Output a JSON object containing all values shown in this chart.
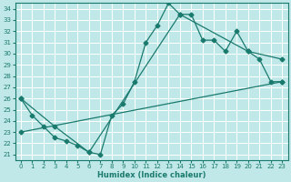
{
  "xlabel": "Humidex (Indice chaleur)",
  "bg_color": "#c0e8e8",
  "grid_color": "#ffffff",
  "line_color": "#1a7a6e",
  "xlim": [
    -0.5,
    23.5
  ],
  "ylim": [
    20.5,
    34.5
  ],
  "xticks": [
    0,
    1,
    2,
    3,
    4,
    5,
    6,
    7,
    8,
    9,
    10,
    11,
    12,
    13,
    14,
    15,
    16,
    17,
    18,
    19,
    20,
    21,
    22,
    23
  ],
  "yticks": [
    21,
    22,
    23,
    24,
    25,
    26,
    27,
    28,
    29,
    30,
    31,
    32,
    33,
    34
  ],
  "line1_x": [
    0,
    1,
    2,
    3,
    4,
    5,
    6,
    7,
    8,
    9,
    10,
    11,
    12,
    13,
    14,
    15,
    16,
    17,
    18,
    19,
    20,
    21,
    22,
    23
  ],
  "line1_y": [
    26.0,
    24.5,
    23.5,
    22.5,
    22.2,
    21.8,
    21.2,
    21.0,
    24.5,
    25.5,
    27.5,
    31.0,
    32.5,
    34.5,
    33.5,
    33.5,
    31.2,
    31.2,
    30.2,
    32.0,
    30.2,
    29.5,
    27.5,
    27.5
  ],
  "line2_x": [
    0,
    23
  ],
  "line2_y": [
    23.0,
    27.5
  ],
  "line3_x": [
    0,
    3,
    6,
    14,
    20,
    23
  ],
  "line3_y": [
    26.0,
    23.5,
    21.2,
    33.5,
    30.2,
    29.5
  ]
}
